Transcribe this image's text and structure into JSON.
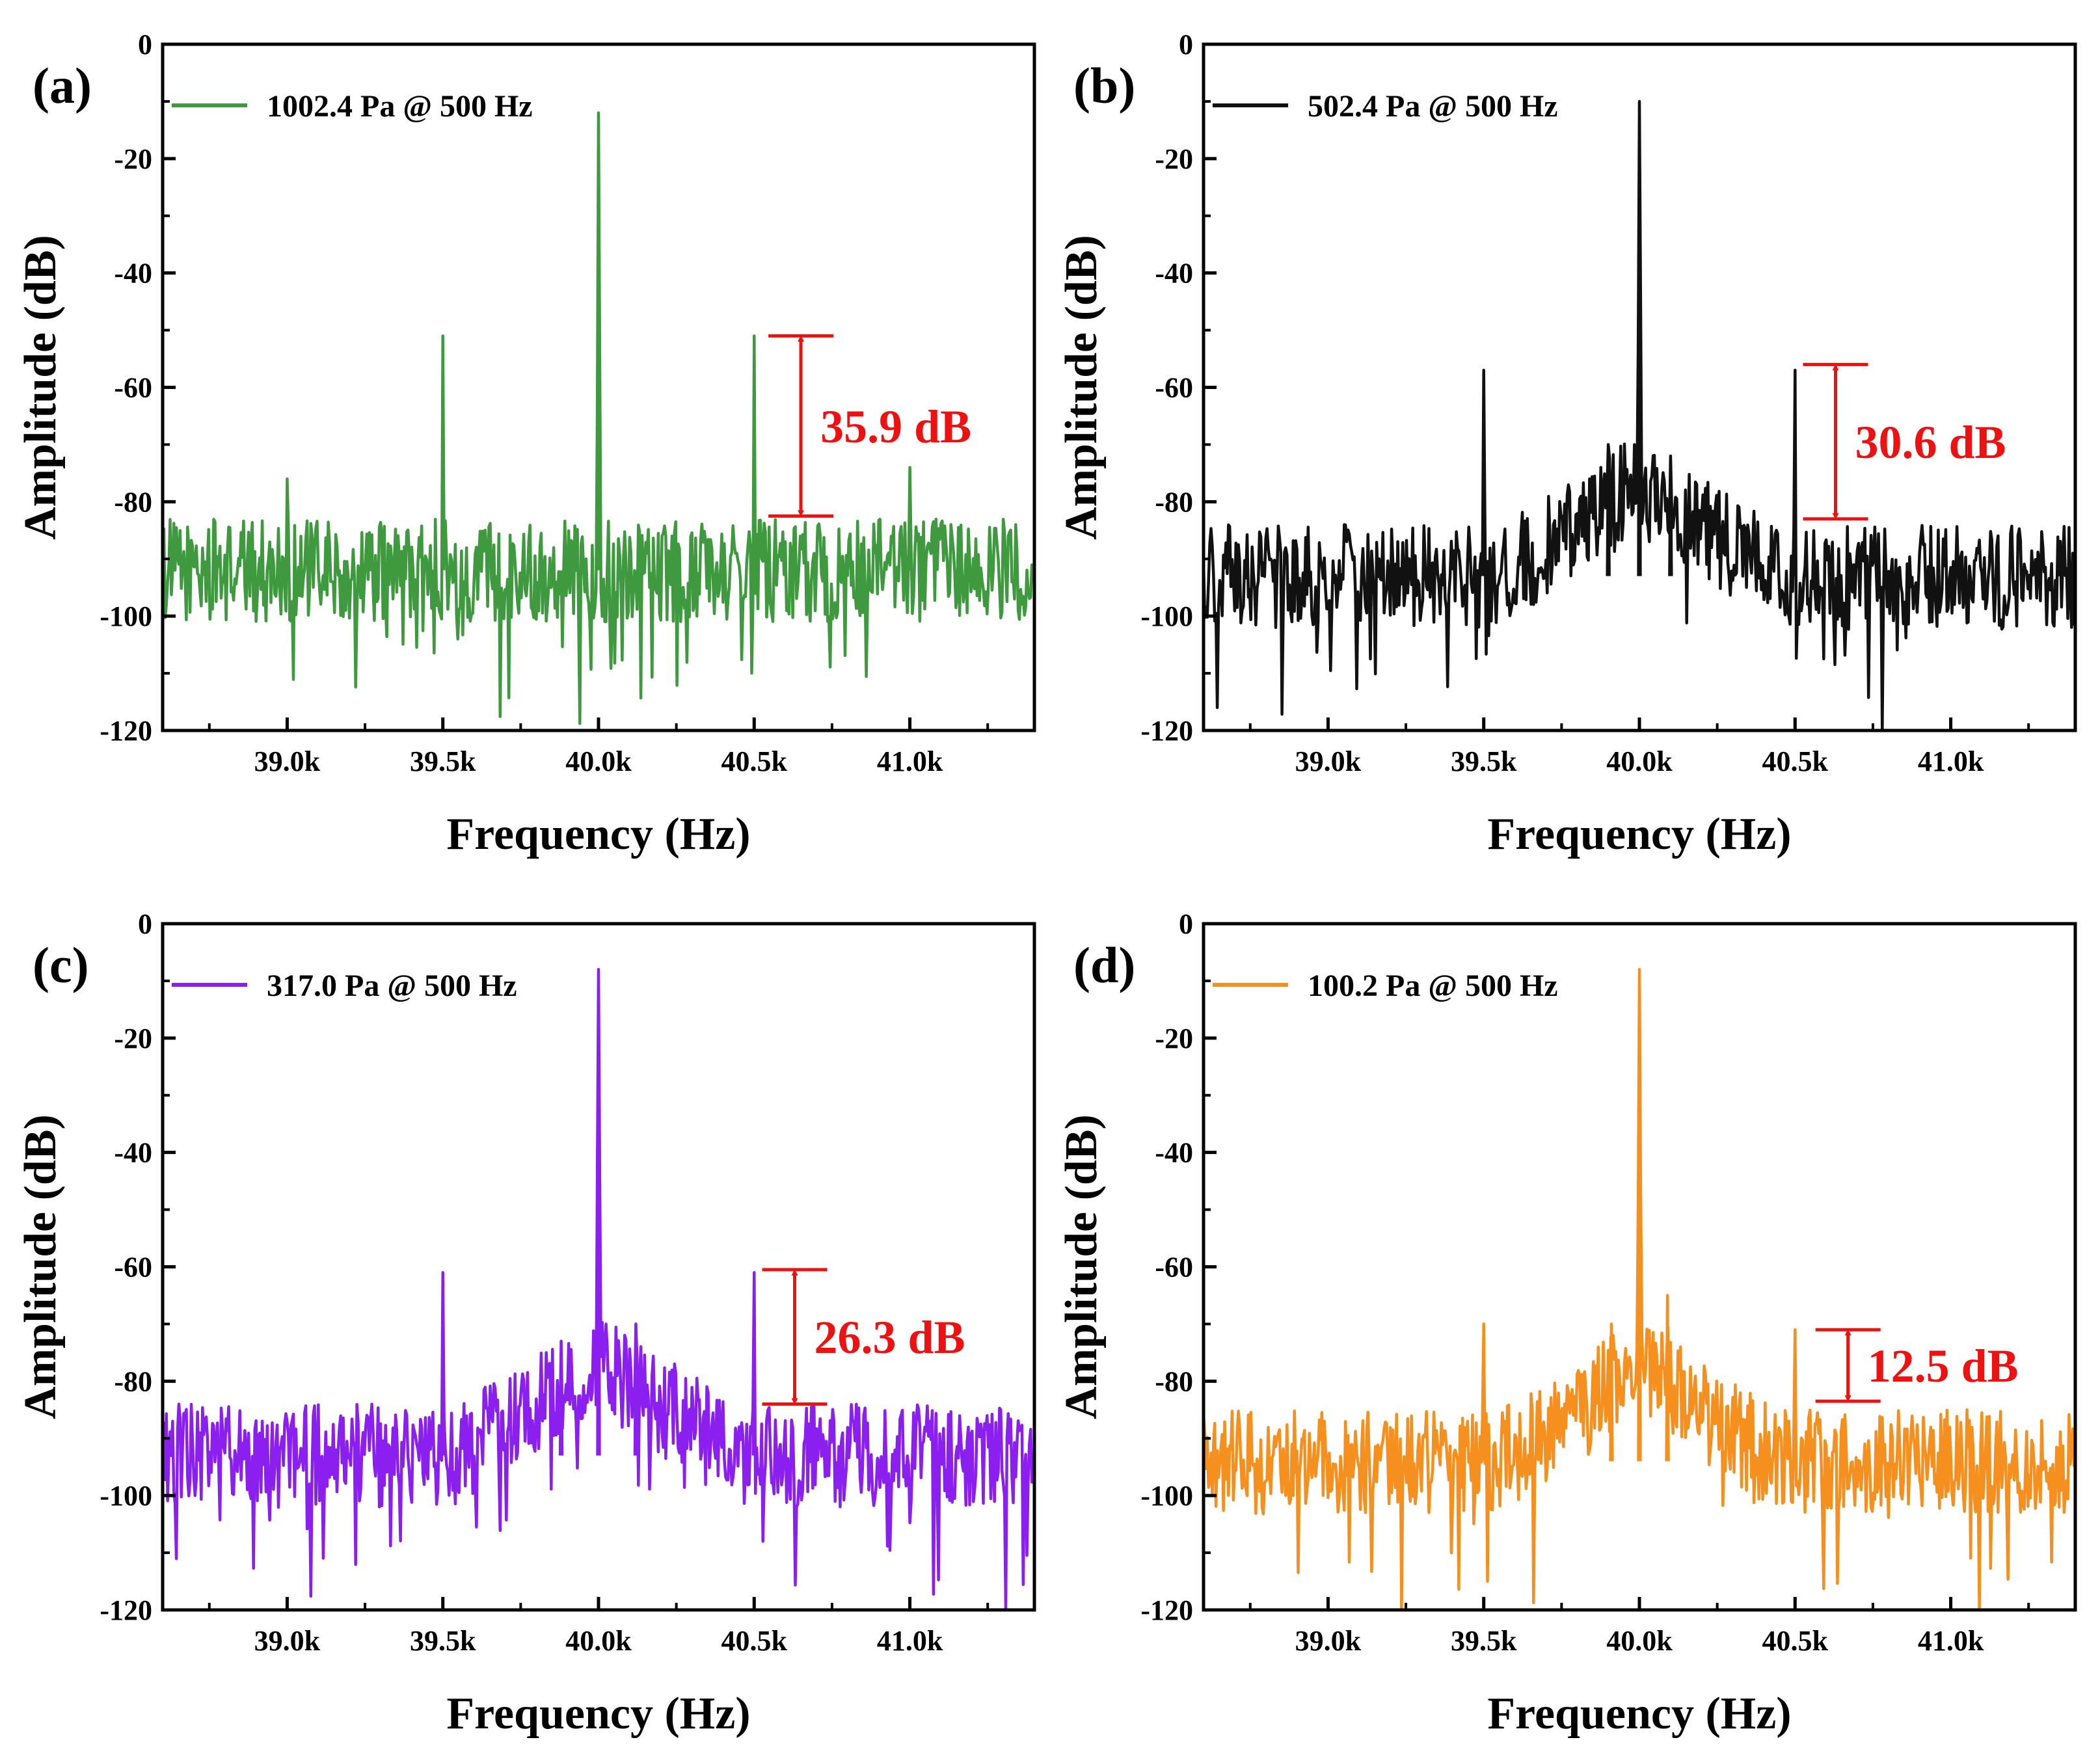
{
  "colors": {
    "annotation": "#ee1111",
    "axis": "#000000"
  },
  "chart_data": [
    {
      "type": "line",
      "panel_label": "(a)",
      "xlabel": "Frequency (Hz)",
      "ylabel": "Amplitude (dB)",
      "xlim": [
        38600,
        41400
      ],
      "ylim": [
        -120,
        0
      ],
      "xticks": [
        39000,
        39500,
        40000,
        40500,
        41000
      ],
      "xtick_labels": [
        "39.0k",
        "39.5k",
        "40.0k",
        "40.5k",
        "41.0k"
      ],
      "yticks": [
        0,
        -20,
        -40,
        -60,
        -80,
        -100,
        -120
      ],
      "ytick_labels": [
        "0",
        "-20",
        "-40",
        "-60",
        "-80",
        "-100",
        "-120"
      ],
      "legend": "1002.4 Pa @ 500 Hz",
      "legend_position": "top-left",
      "color": "#3f9a3f",
      "noise_floor": -92,
      "noise_amplitude": 9,
      "peaks": [
        {
          "x": 40000,
          "y": -12
        },
        {
          "x": 39500,
          "y": -51
        },
        {
          "x": 40500,
          "y": -51
        },
        {
          "x": 39000,
          "y": -76
        },
        {
          "x": 41000,
          "y": -74
        }
      ],
      "annotation": {
        "text": "35.9 dB",
        "x": 40650,
        "y_top": -51,
        "y_bottom": -82.5
      }
    },
    {
      "type": "line",
      "panel_label": "(b)",
      "xlabel": "Frequency (Hz)",
      "ylabel": "Amplitude (dB)",
      "xlim": [
        38600,
        41400
      ],
      "ylim": [
        -120,
        0
      ],
      "xticks": [
        39000,
        39500,
        40000,
        40500,
        41000
      ],
      "xtick_labels": [
        "39.0k",
        "39.5k",
        "40.0k",
        "40.5k",
        "41.0k"
      ],
      "yticks": [
        0,
        -20,
        -40,
        -60,
        -80,
        -100,
        -120
      ],
      "ytick_labels": [
        "0",
        "-20",
        "-40",
        "-60",
        "-80",
        "-100",
        "-120"
      ],
      "legend": "502.4 Pa @ 500 Hz",
      "legend_position": "top-left",
      "color": "#111111",
      "noise_floor": -93,
      "noise_amplitude": 9,
      "peaks": [
        {
          "x": 40000,
          "y": -10
        },
        {
          "x": 39500,
          "y": -57
        },
        {
          "x": 40500,
          "y": -57
        },
        {
          "x": 39900,
          "y": -70
        },
        {
          "x": 40100,
          "y": -72
        }
      ],
      "annotation": {
        "text": "30.6 dB",
        "x": 40630,
        "y_top": -56,
        "y_bottom": -83
      }
    },
    {
      "type": "line",
      "panel_label": "(c)",
      "xlabel": "Frequency (Hz)",
      "ylabel": "Amplitude (dB)",
      "xlim": [
        38600,
        41400
      ],
      "ylim": [
        -120,
        0
      ],
      "xticks": [
        39000,
        39500,
        40000,
        40500,
        41000
      ],
      "xtick_labels": [
        "39.0k",
        "39.5k",
        "40.0k",
        "40.5k",
        "41.0k"
      ],
      "yticks": [
        0,
        -20,
        -40,
        -60,
        -80,
        -100,
        -120
      ],
      "ytick_labels": [
        "0",
        "-20",
        "-40",
        "-60",
        "-80",
        "-100",
        "-120"
      ],
      "legend": "317.0 Pa @ 500 Hz",
      "legend_position": "top-left",
      "color": "#8b1ff0",
      "noise_floor": -93,
      "noise_amplitude": 9,
      "peaks": [
        {
          "x": 40000,
          "y": -8
        },
        {
          "x": 39500,
          "y": -61
        },
        {
          "x": 40500,
          "y": -61
        },
        {
          "x": 39880,
          "y": -73
        },
        {
          "x": 40120,
          "y": -70
        }
      ],
      "annotation": {
        "text": "26.3 dB",
        "x": 40630,
        "y_top": -60.5,
        "y_bottom": -84
      }
    },
    {
      "type": "line",
      "panel_label": "(d)",
      "xlabel": "Frequency (Hz)",
      "ylabel": "Amplitude (dB)",
      "xlim": [
        38600,
        41400
      ],
      "ylim": [
        -120,
        0
      ],
      "xticks": [
        39000,
        39500,
        40000,
        40500,
        41000
      ],
      "xtick_labels": [
        "39.0k",
        "39.5k",
        "40.0k",
        "40.5k",
        "41.0k"
      ],
      "yticks": [
        0,
        -20,
        -40,
        -60,
        -80,
        -100,
        -120
      ],
      "ytick_labels": [
        "0",
        "-20",
        "-40",
        "-60",
        "-80",
        "-100",
        "-120"
      ],
      "legend": "100.2 Pa @ 500 Hz",
      "legend_position": "top-left",
      "color": "#f5901e",
      "noise_floor": -94,
      "noise_amplitude": 9,
      "peaks": [
        {
          "x": 40000,
          "y": -8
        },
        {
          "x": 39500,
          "y": -70
        },
        {
          "x": 40500,
          "y": -71
        },
        {
          "x": 40090,
          "y": -65
        },
        {
          "x": 39910,
          "y": -70
        }
      ],
      "annotation": {
        "text": "12.5 dB",
        "x": 40670,
        "y_top": -71,
        "y_bottom": -83.5
      }
    }
  ]
}
